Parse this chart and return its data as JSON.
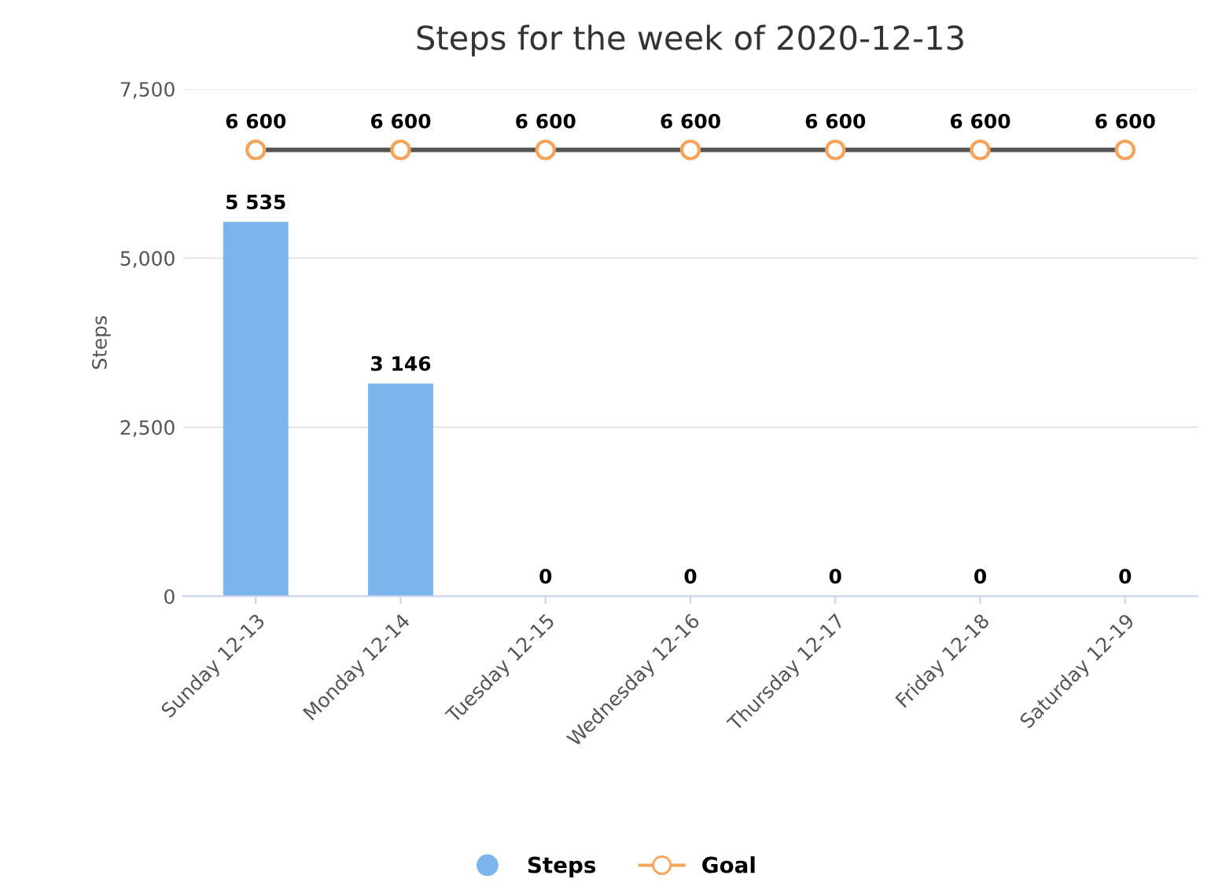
{
  "chart_data": {
    "type": "bar",
    "title": "Steps for the week of 2020-12-13",
    "ylabel": "Steps",
    "categories": [
      "Sunday 12-13",
      "Monday 12-14",
      "Tuesday 12-15",
      "Wednesday 12-16",
      "Thursday 12-17",
      "Friday 12-18",
      "Saturday 12-19"
    ],
    "series": [
      {
        "name": "Steps",
        "color": "#7cb5ec",
        "values": [
          5535,
          3146,
          0,
          0,
          0,
          0,
          0
        ],
        "value_labels": [
          "5 535",
          "3 146",
          "0",
          "0",
          "0",
          "0",
          "0"
        ]
      },
      {
        "name": "Goal",
        "type": "line",
        "color": "#555555",
        "colors": [
          "#f7a35c",
          "#f7a35c",
          "#f7a35c",
          "#f7a35c",
          "#f7a35c",
          "#f7a35c",
          "#f7a35c"
        ],
        "marker": "circle",
        "values": [
          6600,
          6600,
          6600,
          6600,
          6600,
          6600,
          6600
        ],
        "value_labels": [
          "6 600",
          "6 600",
          "6 600",
          "6 600",
          "6 600",
          "6 600",
          "6 600"
        ]
      }
    ],
    "ylim": [
      0,
      7500
    ],
    "yticks": [
      0,
      {
        "value": 2500,
        "label": "2,500"
      },
      {
        "value": 5000,
        "label": "5,000"
      },
      {
        "value": 7500,
        "label": "7,500"
      }
    ],
    "grid": "y",
    "legend": "bottom"
  }
}
